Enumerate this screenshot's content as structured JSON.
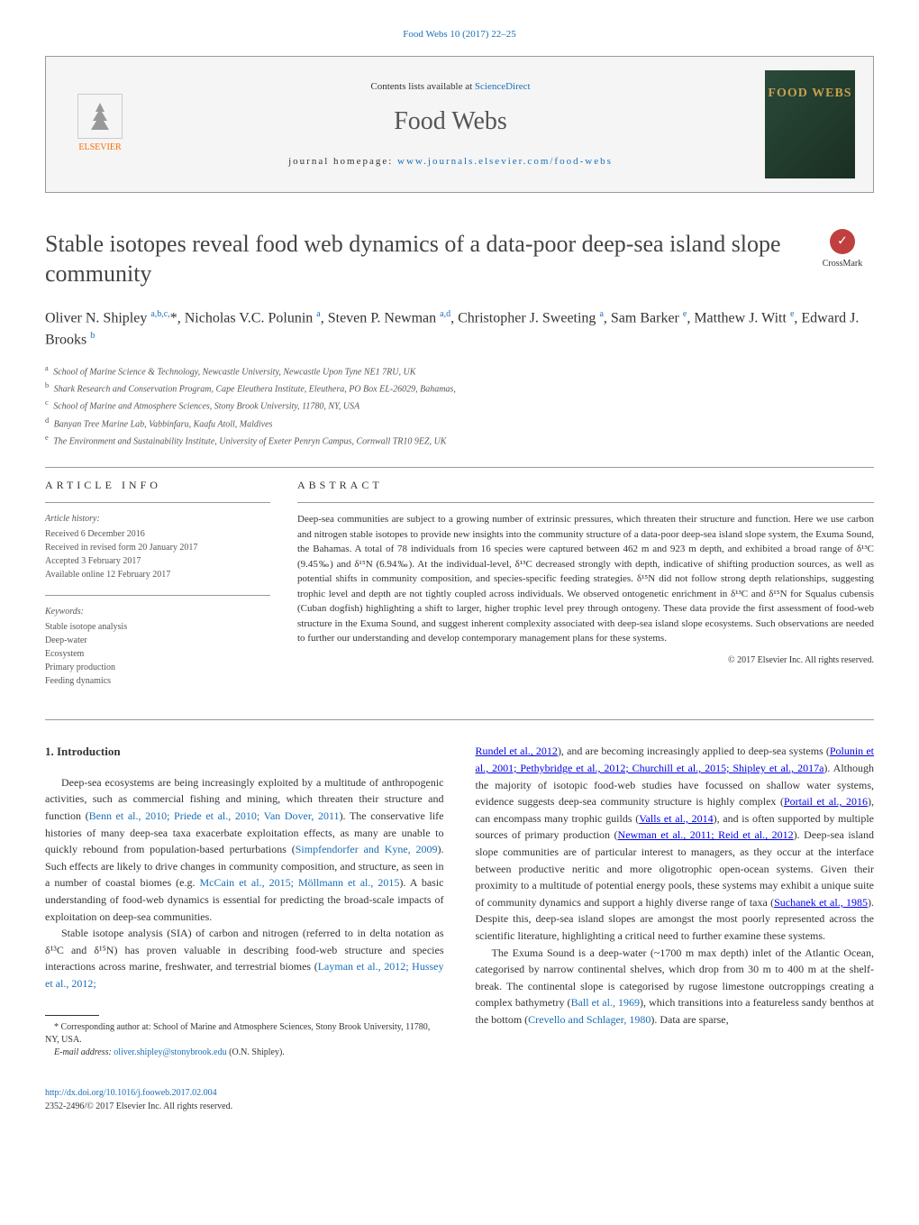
{
  "journal_ref_top": "Food Webs 10 (2017) 22–25",
  "header": {
    "contents_prefix": "Contents lists available at ",
    "contents_link": "ScienceDirect",
    "journal_title": "Food Webs",
    "homepage_prefix": "journal homepage: ",
    "homepage_link": "www.journals.elsevier.com/food-webs",
    "elsevier_label": "ELSEVIER",
    "cover_text": "FOOD WEBS"
  },
  "title": "Stable isotopes reveal food web dynamics of a data-poor deep-sea island slope community",
  "crossmark_label": "CrossMark",
  "authors_html": "Oliver N. Shipley <sup>a,b,c,</sup><span class='asterisk'>*</span>, Nicholas V.C. Polunin <sup>a</sup>, Steven P. Newman <sup>a,d</sup>, Christopher J. Sweeting <sup>a</sup>, Sam Barker <sup>e</sup>, Matthew J. Witt <sup>e</sup>, Edward J. Brooks <sup>b</sup>",
  "affiliations": [
    {
      "sup": "a",
      "text": "School of Marine Science & Technology, Newcastle University, Newcastle Upon Tyne NE1 7RU, UK"
    },
    {
      "sup": "b",
      "text": "Shark Research and Conservation Program, Cape Eleuthera Institute, Eleuthera, PO Box EL-26029, Bahamas,"
    },
    {
      "sup": "c",
      "text": "School of Marine and Atmosphere Sciences, Stony Brook University, 11780, NY, USA"
    },
    {
      "sup": "d",
      "text": "Banyan Tree Marine Lab, Vabbinfaru, Kaafu Atoll, Maldives"
    },
    {
      "sup": "e",
      "text": "The Environment and Sustainability Institute, University of Exeter Penryn Campus, Cornwall TR10 9EZ, UK"
    }
  ],
  "article_info": {
    "header": "ARTICLE INFO",
    "history_title": "Article history:",
    "history_lines": [
      "Received 6 December 2016",
      "Received in revised form 20 January 2017",
      "Accepted 3 February 2017",
      "Available online 12 February 2017"
    ],
    "keywords_title": "Keywords:",
    "keywords": [
      "Stable isotope analysis",
      "Deep-water",
      "Ecosystem",
      "Primary production",
      "Feeding dynamics"
    ]
  },
  "abstract": {
    "header": "ABSTRACT",
    "text": "Deep-sea communities are subject to a growing number of extrinsic pressures, which threaten their structure and function. Here we use carbon and nitrogen stable isotopes to provide new insights into the community structure of a data-poor deep-sea island slope system, the Exuma Sound, the Bahamas. A total of 78 individuals from 16 species were captured between 462 m and 923 m depth, and exhibited a broad range of δ¹³C (9.45‰) and δ¹⁵N (6.94‰). At the individual-level, δ¹³C decreased strongly with depth, indicative of shifting production sources, as well as potential shifts in community composition, and species-specific feeding strategies. δ¹⁵N did not follow strong depth relationships, suggesting trophic level and depth are not tightly coupled across individuals. We observed ontogenetic enrichment in δ¹³C and δ¹⁵N for Squalus cubensis (Cuban dogfish) highlighting a shift to larger, higher trophic level prey through ontogeny. These data provide the first assessment of food-web structure in the Exuma Sound, and suggest inherent complexity associated with deep-sea island slope ecosystems. Such observations are needed to further our understanding and develop contemporary management plans for these systems.",
    "copyright": "© 2017 Elsevier Inc. All rights reserved."
  },
  "intro": {
    "heading": "1. Introduction",
    "p1_a": "Deep-sea ecosystems are being increasingly exploited by a multitude of anthropogenic activities, such as commercial fishing and mining, which threaten their structure and function (",
    "p1_link1": "Benn et al., 2010; Priede et al., 2010; Van Dover, 2011",
    "p1_b": "). The conservative life histories of many deep-sea taxa exacerbate exploitation effects, as many are unable to quickly rebound from population-based perturbations (",
    "p1_link2": "Simpfendorfer and Kyne, 2009",
    "p1_c": "). Such effects are likely to drive changes in community composition, and structure, as seen in a number of coastal biomes (e.g. ",
    "p1_link3": "McCain et al., 2015; Möllmann et al., 2015",
    "p1_d": "). A basic understanding of food-web dynamics is essential for predicting the broad-scale impacts of exploitation on deep-sea communities.",
    "p2_a": "Stable isotope analysis (SIA) of carbon and nitrogen (referred to in delta notation as δ¹³C and δ¹⁵N) has proven valuable in describing food-web structure and species interactions across marine, freshwater, and terrestrial biomes (",
    "p2_link1": "Layman et al., 2012; Hussey et al., 2012;",
    "p2_link2a": "Rundel et al., 2012",
    "p2_b": "), and are becoming increasingly applied to deep-sea systems (",
    "p2_link2": "Polunin et al., 2001; Pethybridge et al., 2012; Churchill et al., 2015; Shipley et al., 2017a",
    "p2_c": "). Although the majority of isotopic food-web studies have focussed on shallow water systems, evidence suggests deep-sea community structure is highly complex (",
    "p2_link3": "Portail et al., 2016",
    "p2_d": "), can encompass many trophic guilds (",
    "p2_link4": "Valls et al., 2014",
    "p2_e": "), and is often supported by multiple sources of primary production (",
    "p2_link5": "Newman et al., 2011; Reid et al., 2012",
    "p2_f": "). Deep-sea island slope communities are of particular interest to managers, as they occur at the interface between productive neritic and more oligotrophic open-ocean systems. Given their proximity to a multitude of potential energy pools, these systems may exhibit a unique suite of community dynamics and support a highly diverse range of taxa (",
    "p2_link6": "Suchanek et al., 1985",
    "p2_g": "). Despite this, deep-sea island slopes are amongst the most poorly represented across the scientific literature, highlighting a critical need to further examine these systems.",
    "p3_a": "The Exuma Sound is a deep-water (~1700 m max depth) inlet of the Atlantic Ocean, categorised by narrow continental shelves, which drop from 30 m to 400 m at the shelf-break. The continental slope is categorised by rugose limestone outcroppings creating a complex bathymetry (",
    "p3_link1": "Ball et al., 1969",
    "p3_b": "), which transitions into a featureless sandy benthos at the bottom (",
    "p3_link2": "Crevello and Schlager, 1980",
    "p3_c": "). Data are sparse,"
  },
  "footnotes": {
    "corr_a": "* Corresponding author at: School of Marine and Atmosphere Sciences, Stony Brook University, 11780, NY, USA.",
    "email_label": "E-mail address: ",
    "email": "oliver.shipley@stonybrook.edu",
    "email_suffix": " (O.N. Shipley)."
  },
  "footer": {
    "doi": "http://dx.doi.org/10.1016/j.fooweb.2017.02.004",
    "issn_copyright": "2352-2496/© 2017 Elsevier Inc. All rights reserved."
  }
}
